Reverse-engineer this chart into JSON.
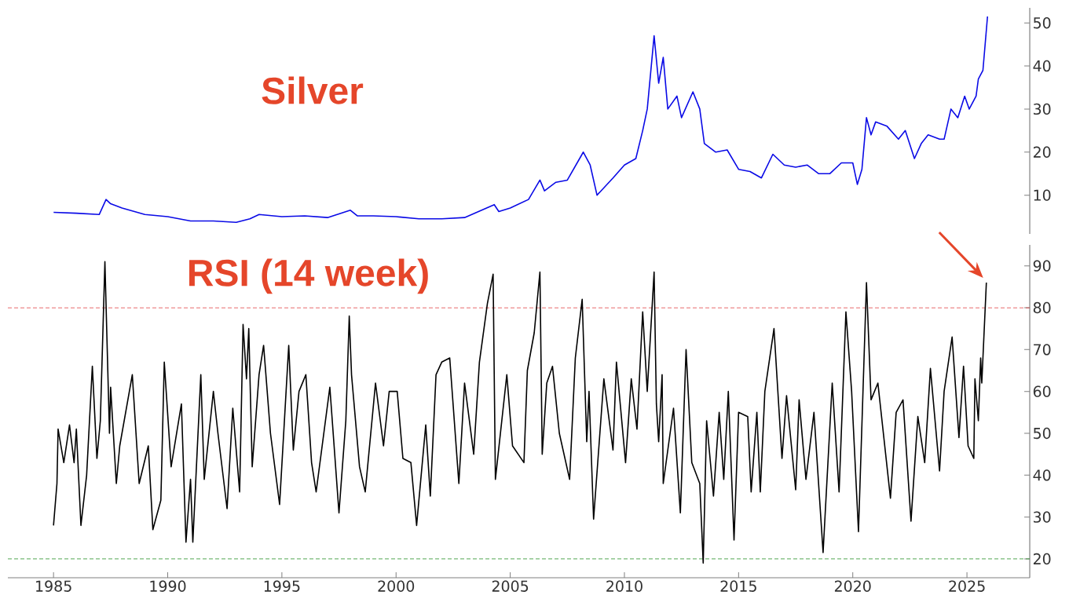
{
  "chart_data": [
    {
      "type": "line",
      "title": "Silver",
      "xlim": [
        1985,
        2027.75
      ],
      "xticks": [
        1985,
        1990,
        1995,
        2000,
        2005,
        2010,
        2015,
        2020,
        2025
      ],
      "ylim": [
        1,
        53.5
      ],
      "yticks": [
        10,
        20,
        30,
        40,
        50
      ],
      "tick_labels": "y",
      "series": [
        {
          "color": "#0a0ae6",
          "x": [
            1985.0,
            1986,
            1987.0,
            1987.3,
            1987.5,
            1988,
            1989,
            1990,
            1991,
            1992,
            1993,
            1993.6,
            1994,
            1995,
            1996,
            1997,
            1998.0,
            1998.3,
            1999,
            2000,
            2001,
            2002,
            2003,
            2004.3,
            2004.5,
            2005,
            2005.8,
            2006.3,
            2006.5,
            2007,
            2007.5,
            2008.2,
            2008.5,
            2008.8,
            2009.5,
            2010,
            2010.5,
            2010.8,
            2011.0,
            2011.3,
            2011.5,
            2011.7,
            2011.9,
            2012.3,
            2012.5,
            2013.0,
            2013.3,
            2013.5,
            2014,
            2014.5,
            2015,
            2015.5,
            2016.0,
            2016.5,
            2017,
            2017.5,
            2018,
            2018.5,
            2019,
            2019.5,
            2020.0,
            2020.2,
            2020.4,
            2020.6,
            2020.8,
            2021,
            2021.5,
            2022,
            2022.3,
            2022.7,
            2023,
            2023.3,
            2023.8,
            2024,
            2024.3,
            2024.6,
            2024.9,
            2025.1,
            2025.4,
            2025.5,
            2025.7,
            2025.9
          ],
          "values": [
            6.0,
            5.8,
            5.5,
            9.0,
            8.0,
            7.0,
            5.5,
            5.0,
            4.0,
            4.0,
            3.7,
            4.5,
            5.5,
            5.0,
            5.2,
            4.8,
            6.5,
            5.2,
            5.2,
            5.0,
            4.5,
            4.5,
            4.8,
            7.8,
            6.2,
            7.0,
            9,
            13.5,
            11,
            13,
            13.5,
            20,
            17,
            10,
            14,
            17,
            18.5,
            25,
            30,
            47,
            36,
            42,
            30,
            33,
            28,
            34,
            30,
            22,
            20,
            20.5,
            16,
            15.5,
            14,
            19.5,
            17,
            16.5,
            17,
            15,
            15,
            17.5,
            17.5,
            12.5,
            16,
            28,
            24,
            27,
            26,
            23,
            25,
            18.5,
            22,
            24,
            23,
            23,
            30,
            28,
            33,
            30,
            33,
            37,
            39,
            51.5
          ]
        }
      ]
    },
    {
      "type": "line",
      "title": "RSI (14 week)",
      "xlim": [
        1983,
        2027.75
      ],
      "ylim": [
        15.5,
        95
      ],
      "xticks": [
        1985,
        1990,
        1995,
        2000,
        2005,
        2010,
        2015,
        2020,
        2025
      ],
      "yticks": [
        20,
        30,
        40,
        50,
        60,
        70,
        80,
        90
      ],
      "ref_lines": [
        {
          "axis": "y",
          "value": 80,
          "color": "#e0393a",
          "line_style": "dashed"
        },
        {
          "axis": "y",
          "value": 20,
          "color": "#3a9a3a",
          "line_style": "dashed"
        }
      ],
      "series": [
        {
          "color": "#000000",
          "x": [
            1985.0,
            1985.15,
            1985.2,
            1985.45,
            1985.7,
            1985.9,
            1986.0,
            1986.2,
            1986.45,
            1986.7,
            1986.9,
            1987.05,
            1987.25,
            1987.45,
            1987.5,
            1987.75,
            1987.9,
            1988.45,
            1988.75,
            1989.15,
            1989.35,
            1989.7,
            1989.85,
            1990.15,
            1990.6,
            1990.8,
            1991.0,
            1991.1,
            1991.45,
            1991.6,
            1992.0,
            1992.2,
            1992.6,
            1992.85,
            1993.15,
            1993.3,
            1993.45,
            1993.55,
            1993.7,
            1994.0,
            1994.2,
            1994.5,
            1994.9,
            1995.3,
            1995.5,
            1995.75,
            1996.05,
            1996.3,
            1996.5,
            1997.1,
            1997.5,
            1997.8,
            1997.95,
            1998.05,
            1998.4,
            1998.65,
            1999.1,
            1999.45,
            1999.7,
            2000.05,
            2000.3,
            2000.65,
            2000.9,
            2001.3,
            2001.5,
            2001.75,
            2002.0,
            2002.35,
            2002.75,
            2003.0,
            2003.4,
            2003.65,
            2004.0,
            2004.25,
            2004.35,
            2004.85,
            2005.1,
            2005.6,
            2005.75,
            2006.05,
            2006.3,
            2006.4,
            2006.6,
            2006.85,
            2007.15,
            2007.6,
            2007.85,
            2008.15,
            2008.35,
            2008.45,
            2008.65,
            2009.1,
            2009.5,
            2009.65,
            2010.05,
            2010.3,
            2010.55,
            2010.8,
            2011.0,
            2011.3,
            2011.4,
            2011.5,
            2011.65,
            2011.7,
            2012.15,
            2012.45,
            2012.7,
            2012.95,
            2013.3,
            2013.45,
            2013.6,
            2013.9,
            2014.15,
            2014.35,
            2014.55,
            2014.8,
            2015.0,
            2015.4,
            2015.55,
            2015.8,
            2015.95,
            2016.15,
            2016.55,
            2016.9,
            2017.1,
            2017.5,
            2017.65,
            2017.95,
            2018.3,
            2018.7,
            2019.1,
            2019.4,
            2019.7,
            2019.95,
            2020.25,
            2020.6,
            2020.8,
            2021.1,
            2021.65,
            2021.9,
            2022.2,
            2022.55,
            2022.85,
            2023.15,
            2023.4,
            2023.8,
            2024.0,
            2024.35,
            2024.65,
            2024.85,
            2025.05,
            2025.3,
            2025.35,
            2025.5,
            2025.6,
            2025.65,
            2025.85
          ],
          "values": [
            28,
            38,
            51,
            43,
            52,
            43,
            51,
            28,
            40,
            66,
            44,
            53,
            91,
            50,
            61,
            38,
            47,
            64,
            38,
            47,
            27,
            34,
            67,
            42,
            57,
            24,
            39,
            24,
            64,
            39,
            60,
            50,
            32,
            56,
            36,
            76,
            63,
            75,
            42,
            64,
            71,
            50,
            33,
            71,
            46,
            60,
            64,
            43,
            36,
            61,
            31,
            53,
            78,
            64,
            42,
            36,
            62,
            47,
            60,
            60,
            44,
            43,
            28,
            52,
            35,
            64,
            67,
            68,
            38,
            62,
            45,
            67,
            81,
            88,
            39,
            64,
            47,
            43,
            65,
            74,
            88.5,
            45,
            62,
            66,
            50,
            39,
            68,
            82,
            48,
            60,
            29.5,
            63,
            46,
            67,
            43,
            63,
            51,
            79,
            60,
            88.5,
            57,
            48,
            64,
            38,
            56,
            31,
            70,
            43,
            38,
            19,
            53,
            35,
            55,
            39,
            60,
            24.5,
            55,
            54,
            36,
            55,
            36,
            60,
            75,
            44,
            59,
            36.5,
            58,
            39,
            55,
            21.5,
            62,
            36,
            79,
            60,
            26.5,
            86,
            58,
            62,
            34.5,
            55,
            58,
            29,
            54,
            43,
            65.5,
            41,
            60,
            73,
            49,
            66,
            47,
            44,
            63,
            53,
            68,
            62,
            86
          ]
        }
      ]
    }
  ]
}
